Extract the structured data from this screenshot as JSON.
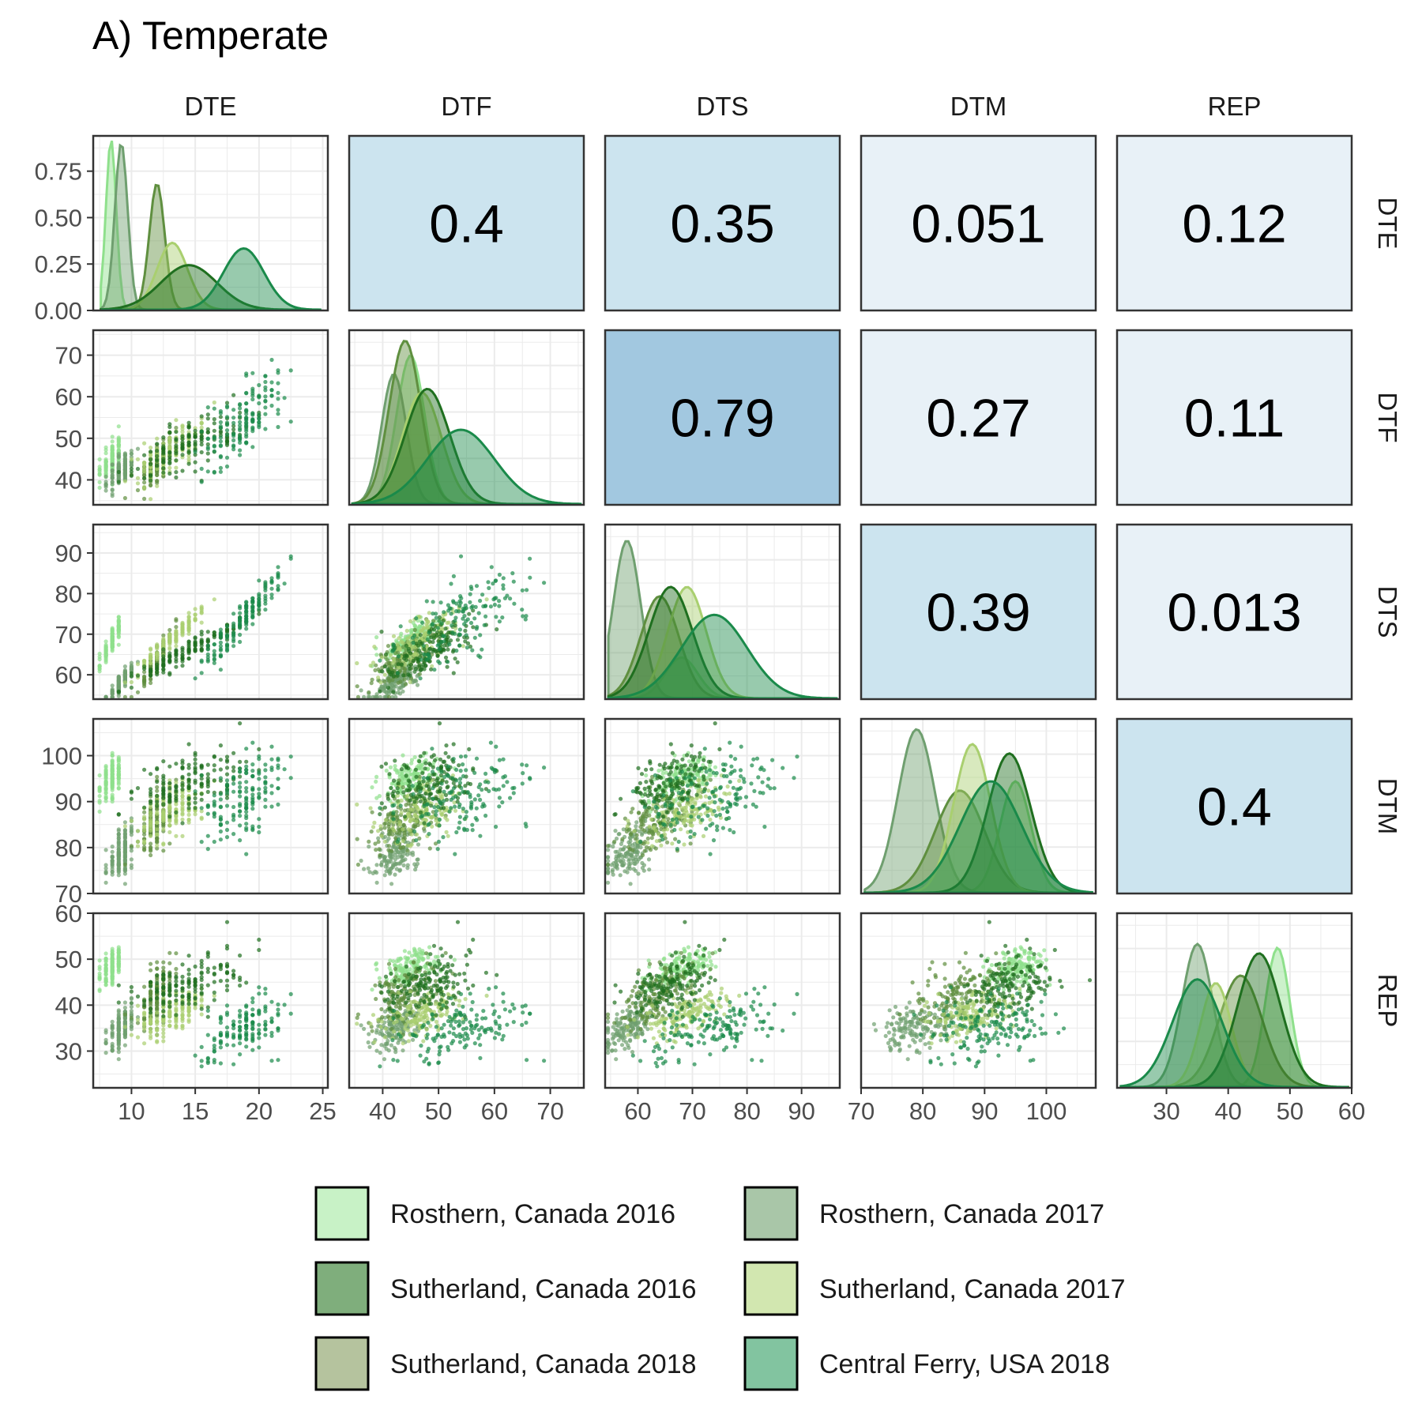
{
  "chart_data": {
    "type": "pairs",
    "title": "A) Temperate",
    "variables": [
      "DTE",
      "DTF",
      "DTS",
      "DTM",
      "REP"
    ],
    "axis_ranges": {
      "DTE": [
        7.0,
        25.4
      ],
      "DTF": [
        34.0,
        76.0
      ],
      "DTS": [
        54.0,
        97.0
      ],
      "DTM": [
        70.0,
        108.0
      ],
      "REP": [
        22.0,
        60.0
      ]
    },
    "density_y_range": [
      0,
      0.94
    ],
    "diag_y_ticks": [
      0.0,
      0.25,
      0.5,
      0.75
    ],
    "diag_y_tick_labels": [
      "0.00",
      "0.25",
      "0.50",
      "0.75"
    ],
    "ticks": {
      "DTE": [
        10,
        15,
        20,
        25
      ],
      "DTF": [
        40,
        50,
        60,
        70
      ],
      "DTS": [
        60,
        70,
        80,
        90
      ],
      "DTM": [
        70,
        80,
        90,
        100
      ],
      "REP": [
        30,
        40,
        50,
        60
      ]
    },
    "correlations": [
      {
        "row": "DTE",
        "col": "DTF",
        "value": "0.4",
        "fill": "#cce4ef"
      },
      {
        "row": "DTE",
        "col": "DTS",
        "value": "0.35",
        "fill": "#cce4ef"
      },
      {
        "row": "DTE",
        "col": "DTM",
        "value": "0.051",
        "fill": "#e8f1f7"
      },
      {
        "row": "DTE",
        "col": "REP",
        "value": "0.12",
        "fill": "#e8f1f7"
      },
      {
        "row": "DTF",
        "col": "DTS",
        "value": "0.79",
        "fill": "#a2c8e0"
      },
      {
        "row": "DTF",
        "col": "DTM",
        "value": "0.27",
        "fill": "#e8f1f7"
      },
      {
        "row": "DTF",
        "col": "REP",
        "value": "0.11",
        "fill": "#e8f1f7"
      },
      {
        "row": "DTS",
        "col": "DTM",
        "value": "0.39",
        "fill": "#cce4ef"
      },
      {
        "row": "DTS",
        "col": "REP",
        "value": "0.013",
        "fill": "#e8f1f7"
      },
      {
        "row": "DTM",
        "col": "REP",
        "value": "0.4",
        "fill": "#cce4ef"
      }
    ],
    "series": [
      {
        "name": "Rosthern, Canada 2016",
        "color": "#8fe08c",
        "legend_fill": "#c8f2c6",
        "density_peak": {
          "DTE": 0.92,
          "DTF": 0.8,
          "DTS": 0.22,
          "DTM": 0.6,
          "REP": 0.75
        },
        "stats": {
          "DTE": {
            "mean": 8.4,
            "sd": 0.4
          },
          "DTF": {
            "mean": 45,
            "sd": 2.5
          },
          "DTS": {
            "mean": 68,
            "sd": 3
          },
          "DTM": {
            "mean": 95,
            "sd": 2.5
          },
          "REP": {
            "mean": 48,
            "sd": 2
          }
        }
      },
      {
        "name": "Rosthern, Canada 2017",
        "color": "#6f9f6f",
        "legend_fill": "#a9c6a8",
        "density_peak": {
          "DTE": 0.9,
          "DTF": 0.7,
          "DTS": 0.85,
          "DTM": 0.88,
          "REP": 0.77
        },
        "stats": {
          "DTE": {
            "mean": 9.2,
            "sd": 0.5
          },
          "DTF": {
            "mean": 42,
            "sd": 2.2
          },
          "DTS": {
            "mean": 58,
            "sd": 2.5
          },
          "DTM": {
            "mean": 79,
            "sd": 3
          },
          "REP": {
            "mean": 35,
            "sd": 2.5
          }
        }
      },
      {
        "name": "Sutherland, Canada 2016",
        "color": "#5f8f3f",
        "legend_fill": "#7fae7c",
        "density_peak": {
          "DTE": 0.68,
          "DTF": 0.88,
          "DTS": 0.55,
          "DTM": 0.55,
          "REP": 0.6
        },
        "stats": {
          "DTE": {
            "mean": 12.0,
            "sd": 0.6
          },
          "DTF": {
            "mean": 44,
            "sd": 2.8
          },
          "DTS": {
            "mean": 64,
            "sd": 3.5
          },
          "DTM": {
            "mean": 86,
            "sd": 4
          },
          "REP": {
            "mean": 42,
            "sd": 3.5
          }
        }
      },
      {
        "name": "Sutherland, Canada 2017",
        "color": "#a9cf6f",
        "legend_fill": "#d2e7b0",
        "density_peak": {
          "DTE": 0.36,
          "DTF": 0.6,
          "DTS": 0.6,
          "DTM": 0.8,
          "REP": 0.56
        },
        "stats": {
          "DTE": {
            "mean": 13.2,
            "sd": 1.2
          },
          "DTF": {
            "mean": 47,
            "sd": 3.5
          },
          "DTS": {
            "mean": 69,
            "sd": 3.5
          },
          "DTM": {
            "mean": 88,
            "sd": 3
          },
          "REP": {
            "mean": 38,
            "sd": 2.5
          }
        }
      },
      {
        "name": "Sutherland, Canada 2018",
        "color": "#1f6f1f",
        "legend_fill": "#b5c39e",
        "density_peak": {
          "DTE": 0.24,
          "DTF": 0.62,
          "DTS": 0.6,
          "DTM": 0.75,
          "REP": 0.72
        },
        "stats": {
          "DTE": {
            "mean": 14.5,
            "sd": 2.2
          },
          "DTF": {
            "mean": 48,
            "sd": 4
          },
          "DTS": {
            "mean": 66,
            "sd": 4
          },
          "DTM": {
            "mean": 94,
            "sd": 3.5
          },
          "REP": {
            "mean": 45,
            "sd": 3.5
          }
        }
      },
      {
        "name": "Central Ferry, USA 2018",
        "color": "#1a8a4a",
        "legend_fill": "#82c4a0",
        "density_peak": {
          "DTE": 0.33,
          "DTF": 0.4,
          "DTS": 0.45,
          "DTM": 0.6,
          "REP": 0.58
        },
        "stats": {
          "DTE": {
            "mean": 18.8,
            "sd": 1.6
          },
          "DTF": {
            "mean": 54,
            "sd": 6
          },
          "DTS": {
            "mean": 74,
            "sd": 6
          },
          "DTM": {
            "mean": 91,
            "sd": 5
          },
          "REP": {
            "mean": 35,
            "sd": 4
          }
        }
      }
    ],
    "legend": {
      "position": "bottom",
      "columns": 2
    }
  }
}
